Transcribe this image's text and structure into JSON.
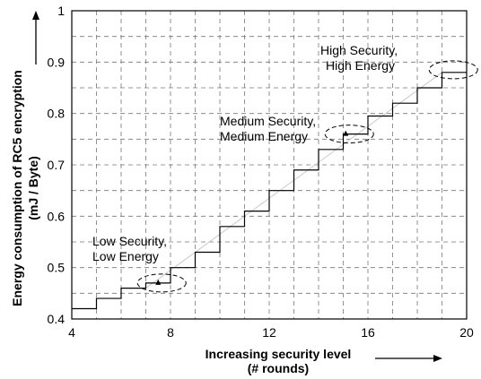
{
  "chart_data": {
    "type": "line",
    "xlabel": "Increasing security level",
    "xlabel_sub": "(# rounds)",
    "ylabel": "Energy consumption of RC5 encryption",
    "ylabel_sub": "(mJ / Byte)",
    "xlim": [
      4,
      20
    ],
    "ylim": [
      0.4,
      1.0
    ],
    "x_ticks": [
      4,
      8,
      12,
      16,
      20
    ],
    "y_ticks": [
      0.4,
      0.5,
      0.6,
      0.7,
      0.8,
      0.9,
      1.0
    ],
    "x_tick_labels": [
      "4",
      "8",
      "12",
      "16",
      "20"
    ],
    "y_tick_labels": [
      "0.4",
      "0.5",
      "0.6",
      "0.7",
      "0.8",
      "0.9",
      "1"
    ],
    "grid": true,
    "series": [
      {
        "style": "step",
        "x": [
          4,
          5,
          6,
          7,
          8,
          9,
          10,
          11,
          12,
          13,
          14,
          15,
          16,
          17,
          18,
          19,
          20
        ],
        "y": [
          0.42,
          0.44,
          0.46,
          0.47,
          0.5,
          0.53,
          0.58,
          0.61,
          0.65,
          0.69,
          0.73,
          0.76,
          0.795,
          0.82,
          0.85,
          0.88,
          0.88
        ]
      }
    ],
    "trend": {
      "x": [
        7,
        19
      ],
      "y": [
        0.46,
        0.88
      ]
    },
    "annotations": [
      {
        "line1": "Low Security,",
        "line2": "Low Energy",
        "x": 7.5,
        "y": 0.47
      },
      {
        "line1": "Medium Security,",
        "line2": "Medium Energy",
        "x": 15.1,
        "y": 0.76
      },
      {
        "line1": "High Security,",
        "line2": "High Energy",
        "x": 19.5,
        "y": 0.885
      }
    ]
  }
}
